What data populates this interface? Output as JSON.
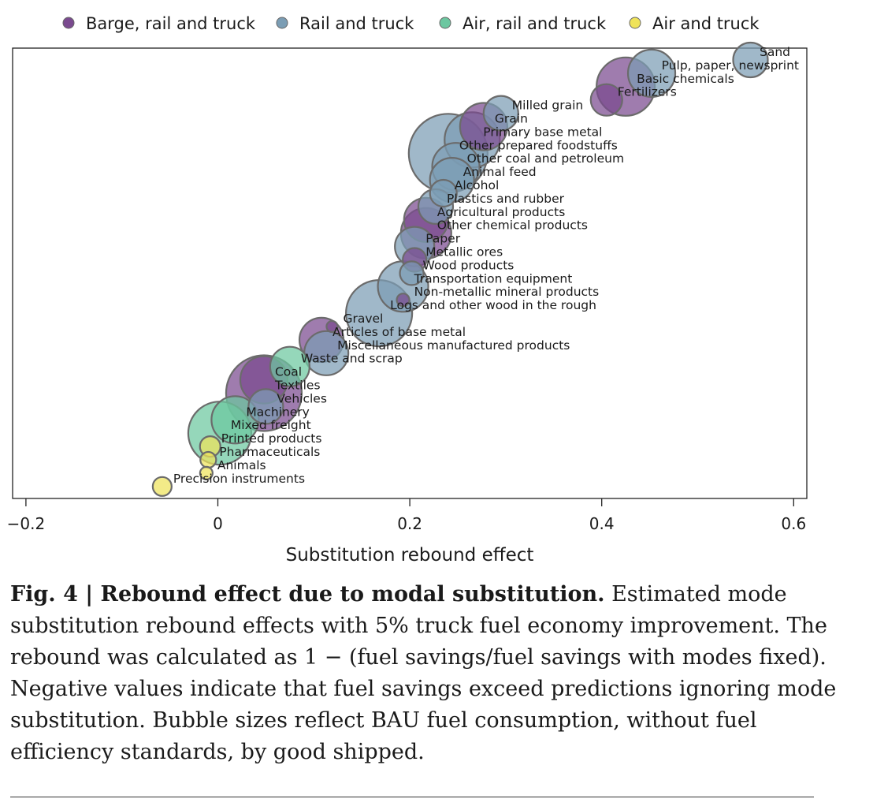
{
  "chart_data": {
    "type": "scatter",
    "xlabel": "Substitution rebound effect",
    "ylabel": "",
    "xlim": [
      -0.22,
      0.62
    ],
    "xticks": [
      -0.2,
      0,
      0.2,
      0.4,
      0.6
    ],
    "xtick_labels": [
      "−0.2",
      "0",
      "0.2",
      "0.4",
      "0.6"
    ],
    "grid": false,
    "legend_position": "top",
    "legend": [
      {
        "key": "barge",
        "label": "Barge, rail and truck",
        "color": "#7a4a8f"
      },
      {
        "key": "rail",
        "label": "Rail and truck",
        "color": "#7b9db4"
      },
      {
        "key": "air_rail",
        "label": "Air, rail and truck",
        "color": "#6cc7a0"
      },
      {
        "key": "air",
        "label": "Air and truck",
        "color": "#efe35a"
      }
    ],
    "points": [
      {
        "label": "Sand",
        "x": 0.555,
        "group": "rail",
        "size": 22
      },
      {
        "label": "Pulp, paper, newsprint",
        "x": 0.452,
        "group": "rail",
        "size": 30
      },
      {
        "label": "Basic chemicals",
        "x": 0.425,
        "group": "barge",
        "size": 37
      },
      {
        "label": "Fertilizers",
        "x": 0.405,
        "group": "barge",
        "size": 20
      },
      {
        "label": "Milled grain",
        "x": 0.295,
        "group": "rail",
        "size": 22
      },
      {
        "label": "Grain",
        "x": 0.277,
        "group": "barge",
        "size": 30
      },
      {
        "label": "Primary base metal",
        "x": 0.265,
        "group": "rail",
        "size": 35
      },
      {
        "label": "Other prepared foodstuffs",
        "x": 0.24,
        "group": "rail",
        "size": 50
      },
      {
        "label": "Other coal and petroleum",
        "x": 0.248,
        "group": "rail",
        "size": 30
      },
      {
        "label": "Animal feed",
        "x": 0.244,
        "group": "rail",
        "size": 28
      },
      {
        "label": "Alcohol",
        "x": 0.235,
        "group": "rail",
        "size": 17
      },
      {
        "label": "Plastics and rubber",
        "x": 0.227,
        "group": "rail",
        "size": 22
      },
      {
        "label": "Agricultural products",
        "x": 0.217,
        "group": "barge",
        "size": 28
      },
      {
        "label": "Other chemical products",
        "x": 0.217,
        "group": "barge",
        "size": 32
      },
      {
        "label": "Paper",
        "x": 0.205,
        "group": "rail",
        "size": 25
      },
      {
        "label": "Metallic ores",
        "x": 0.205,
        "group": "barge",
        "size": 15
      },
      {
        "label": "Wood products",
        "x": 0.202,
        "group": "rail",
        "size": 15
      },
      {
        "label": "Transportation equipment",
        "x": 0.193,
        "group": "rail",
        "size": 32
      },
      {
        "label": "Non-metallic mineral products",
        "x": 0.193,
        "group": "barge",
        "size": 8
      },
      {
        "label": "Logs and other wood in the rough",
        "x": 0.168,
        "group": "rail",
        "size": 42
      },
      {
        "label": "Gravel",
        "x": 0.119,
        "group": "barge",
        "size": 7
      },
      {
        "label": "Articles of base metal",
        "x": 0.108,
        "group": "barge",
        "size": 28
      },
      {
        "label": "Miscellaneous manufactured products",
        "x": 0.113,
        "group": "rail",
        "size": 28
      },
      {
        "label": "Waste and scrap",
        "x": 0.075,
        "group": "air_rail",
        "size": 25
      },
      {
        "label": "Coal",
        "x": 0.048,
        "group": "barge",
        "size": 30
      },
      {
        "label": "Textiles",
        "x": 0.048,
        "group": "barge",
        "size": 48
      },
      {
        "label": "Vehicles",
        "x": 0.05,
        "group": "rail",
        "size": 22
      },
      {
        "label": "Machinery",
        "x": 0.018,
        "group": "air_rail",
        "size": 30
      },
      {
        "label": "Mixed freight",
        "x": 0.002,
        "group": "air_rail",
        "size": 40
      },
      {
        "label": "Printed products",
        "x": -0.008,
        "group": "air",
        "size": 13
      },
      {
        "label": "Pharmaceuticals",
        "x": -0.01,
        "group": "air",
        "size": 10
      },
      {
        "label": "Animals",
        "x": -0.012,
        "group": "air",
        "size": 8
      },
      {
        "label": "Precision instruments",
        "x": -0.058,
        "group": "air",
        "size": 12
      }
    ]
  },
  "caption": {
    "fig_num": "Fig. 4",
    "separator": " | ",
    "title": "Rebound effect due to modal substitution.",
    "text": " Estimated mode substitution rebound effects with 5% truck fuel economy improvement. The rebound was calculated as 1 − (fuel savings/fuel savings with modes fixed). Negative values indicate that fuel savings exceed predictions ignoring mode substitution. Bubble sizes reflect BAU fuel consumption, without fuel efficiency standards, by good shipped."
  }
}
